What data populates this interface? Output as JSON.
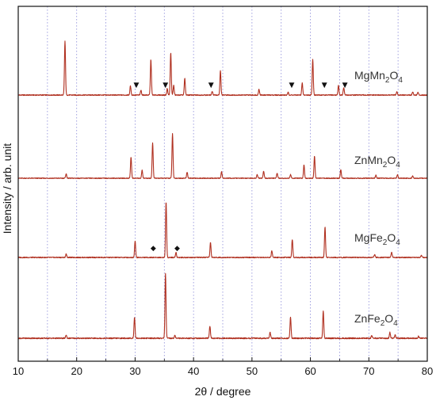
{
  "chart_data": {
    "type": "line",
    "title": "",
    "xlabel": "2θ / degree",
    "ylabel": "Intensity / arb. unit",
    "xlim": [
      10,
      80
    ],
    "x_ticks": [
      10,
      20,
      30,
      40,
      50,
      60,
      70,
      80
    ],
    "x_tick_labels": [
      "10",
      "20",
      "30",
      "40",
      "50",
      "60",
      "70",
      "80"
    ],
    "vertical_gridlines_at": [
      15,
      20,
      25,
      30,
      35,
      40,
      45,
      50,
      55,
      60,
      65,
      70,
      75
    ],
    "grid": "vertical dotted",
    "y_ticks": "none",
    "line_color": "#b03020",
    "grid_color": "#8a8ad8",
    "series": [
      {
        "name": "MgMn2O4",
        "label_parts": [
          "MgMn",
          "2",
          "O",
          "4"
        ],
        "baseline": 0.05,
        "peaks": [
          {
            "x": 18.0,
            "y": 1.0
          },
          {
            "x": 29.2,
            "y": 0.17
          },
          {
            "x": 31.0,
            "y": 0.09
          },
          {
            "x": 32.7,
            "y": 0.66
          },
          {
            "x": 35.5,
            "y": 0.12
          },
          {
            "x": 36.1,
            "y": 0.79
          },
          {
            "x": 36.6,
            "y": 0.18
          },
          {
            "x": 38.5,
            "y": 0.31
          },
          {
            "x": 43.2,
            "y": 0.07
          },
          {
            "x": 44.6,
            "y": 0.45
          },
          {
            "x": 51.2,
            "y": 0.11
          },
          {
            "x": 56.2,
            "y": 0.05
          },
          {
            "x": 58.6,
            "y": 0.22
          },
          {
            "x": 60.4,
            "y": 0.67
          },
          {
            "x": 64.8,
            "y": 0.18
          },
          {
            "x": 65.7,
            "y": 0.14
          },
          {
            "x": 74.8,
            "y": 0.07
          },
          {
            "x": 77.5,
            "y": 0.06
          },
          {
            "x": 78.4,
            "y": 0.05
          }
        ],
        "markers": [
          {
            "x": 30.2,
            "symbol": "▼"
          },
          {
            "x": 35.2,
            "symbol": "▼"
          },
          {
            "x": 43.0,
            "symbol": "▼"
          },
          {
            "x": 56.8,
            "symbol": "▼"
          },
          {
            "x": 62.4,
            "symbol": "▼"
          },
          {
            "x": 65.9,
            "symbol": "▼"
          }
        ]
      },
      {
        "name": "ZnMn2O4",
        "label_parts": [
          "ZnMn",
          "2",
          "O",
          "4"
        ],
        "baseline": 0.03,
        "peaks": [
          {
            "x": 18.2,
            "y": 0.1
          },
          {
            "x": 29.3,
            "y": 0.48
          },
          {
            "x": 31.2,
            "y": 0.18
          },
          {
            "x": 33.0,
            "y": 0.8
          },
          {
            "x": 36.4,
            "y": 1.0
          },
          {
            "x": 38.9,
            "y": 0.14
          },
          {
            "x": 44.8,
            "y": 0.15
          },
          {
            "x": 50.9,
            "y": 0.08
          },
          {
            "x": 52.0,
            "y": 0.16
          },
          {
            "x": 54.3,
            "y": 0.12
          },
          {
            "x": 56.6,
            "y": 0.08
          },
          {
            "x": 58.9,
            "y": 0.3
          },
          {
            "x": 60.7,
            "y": 0.5
          },
          {
            "x": 65.2,
            "y": 0.19
          },
          {
            "x": 71.2,
            "y": 0.07
          },
          {
            "x": 74.9,
            "y": 0.08
          },
          {
            "x": 77.5,
            "y": 0.05
          }
        ],
        "markers": []
      },
      {
        "name": "MgFe2O4",
        "label_parts": [
          "MgFe",
          "2",
          "O",
          "4"
        ],
        "baseline": 0.02,
        "peaks": [
          {
            "x": 18.2,
            "y": 0.06
          },
          {
            "x": 30.0,
            "y": 0.3
          },
          {
            "x": 35.3,
            "y": 1.0
          },
          {
            "x": 37.0,
            "y": 0.09
          },
          {
            "x": 42.9,
            "y": 0.27
          },
          {
            "x": 53.4,
            "y": 0.12
          },
          {
            "x": 56.9,
            "y": 0.33
          },
          {
            "x": 62.5,
            "y": 0.55
          },
          {
            "x": 71.0,
            "y": 0.05
          },
          {
            "x": 73.9,
            "y": 0.09
          },
          {
            "x": 79.0,
            "y": 0.04
          }
        ],
        "markers": [
          {
            "x": 33.1,
            "symbol": "◆"
          },
          {
            "x": 37.2,
            "symbol": "◆"
          }
        ]
      },
      {
        "name": "ZnFe2O4",
        "label_parts": [
          "ZnFe",
          "2",
          "O",
          "4"
        ],
        "baseline": 0.02,
        "peaks": [
          {
            "x": 18.2,
            "y": 0.05
          },
          {
            "x": 29.9,
            "y": 0.33
          },
          {
            "x": 35.2,
            "y": 1.0
          },
          {
            "x": 36.8,
            "y": 0.05
          },
          {
            "x": 42.8,
            "y": 0.19
          },
          {
            "x": 53.1,
            "y": 0.09
          },
          {
            "x": 56.6,
            "y": 0.33
          },
          {
            "x": 62.2,
            "y": 0.42
          },
          {
            "x": 70.5,
            "y": 0.04
          },
          {
            "x": 73.6,
            "y": 0.09
          },
          {
            "x": 74.5,
            "y": 0.05
          },
          {
            "x": 78.5,
            "y": 0.03
          }
        ],
        "markers": []
      }
    ]
  }
}
